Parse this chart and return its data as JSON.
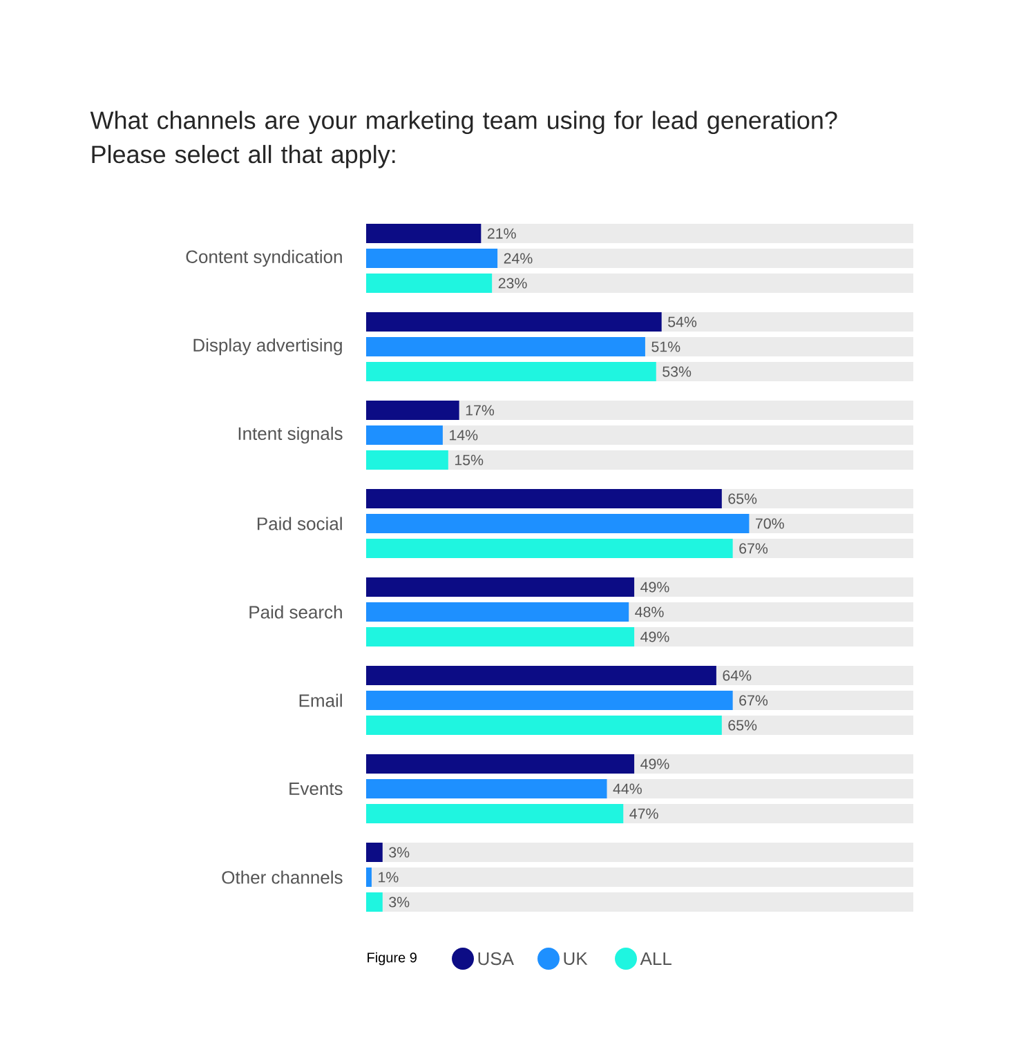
{
  "chart_data": {
    "type": "bar",
    "orientation": "horizontal",
    "title": "What channels are your marketing team using for lead generation? Please select all that apply:",
    "categories": [
      "Content syndication",
      "Display advertising",
      "Intent signals",
      "Paid social",
      "Paid search",
      "Email",
      "Events",
      "Other channels"
    ],
    "series": [
      {
        "name": "USA",
        "color": "#0c0c85",
        "values": [
          21,
          54,
          17,
          65,
          49,
          64,
          49,
          3
        ],
        "value_labels": [
          "21%",
          "54%",
          "17%",
          "65%",
          "49%",
          "64%",
          "49%",
          "3%"
        ]
      },
      {
        "name": "UK",
        "color": "#1e90ff",
        "values": [
          24,
          51,
          14,
          70,
          48,
          67,
          44,
          1
        ],
        "value_labels": [
          "24%",
          "51%",
          "14%",
          "70%",
          "48%",
          "67%",
          "44%",
          "1%"
        ]
      },
      {
        "name": "ALL",
        "color": "#1ff5e0",
        "values": [
          23,
          53,
          15,
          67,
          49,
          65,
          47,
          3
        ],
        "value_labels": [
          "23%",
          "53%",
          "15%",
          "67%",
          "49%",
          "65%",
          "47%",
          "3%"
        ]
      }
    ],
    "xlim": [
      0,
      100
    ],
    "legend": "bottom",
    "annotations": [
      "Figure 9"
    ]
  }
}
